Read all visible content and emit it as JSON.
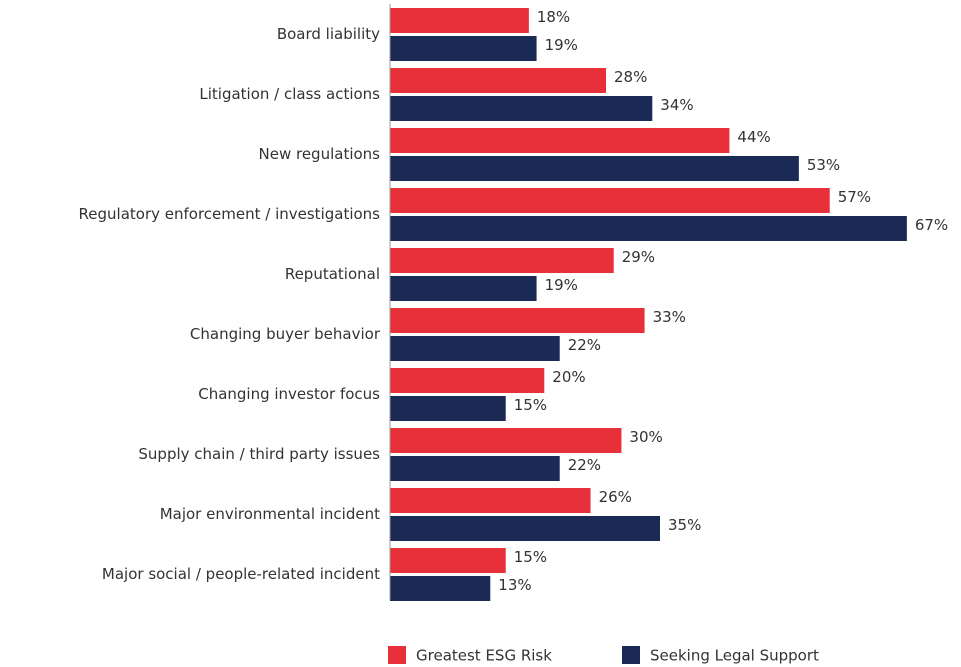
{
  "chart_data": {
    "type": "bar",
    "orientation": "horizontal",
    "categories": [
      "Board liability",
      "Litigation / class actions",
      "New regulations",
      "Regulatory enforcement / investigations",
      "Reputational",
      "Changing buyer behavior",
      "Changing investor focus",
      "Supply chain / third party issues",
      "Major environmental incident",
      "Major social / people-related incident"
    ],
    "series": [
      {
        "name": "Greatest ESG Risk",
        "color": "#e8303a",
        "values": [
          18,
          28,
          44,
          57,
          29,
          33,
          20,
          30,
          26,
          15
        ],
        "value_labels": [
          "18%",
          "28%",
          "44%",
          "57%",
          "29%",
          "33%",
          "20%",
          "30%",
          "26%",
          "15%"
        ]
      },
      {
        "name": "Seeking Legal Support",
        "color": "#1b2a55",
        "values": [
          19,
          34,
          53,
          67,
          19,
          22,
          15,
          22,
          35,
          13
        ],
        "value_labels": [
          "19%",
          "34%",
          "53%",
          "67%",
          "19%",
          "22%",
          "15%",
          "22%",
          "35%",
          "13%"
        ]
      }
    ],
    "xlim": [
      0,
      70
    ],
    "legend": "bottom"
  }
}
